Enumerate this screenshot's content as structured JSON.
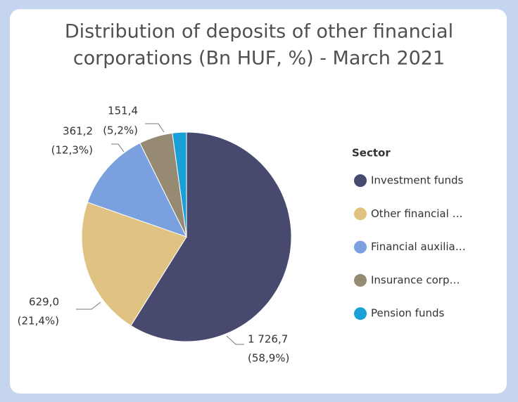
{
  "chart_data": {
    "type": "pie",
    "title": [
      "Distribution of deposits of other financial",
      "corporations (Bn HUF, %) - March 2021"
    ],
    "legend_title": "Sector",
    "categories": [
      "Investment funds",
      "Other financial …",
      "Financial auxilia…",
      "Insurance corp…",
      "Pension funds"
    ],
    "values": [
      1726.7,
      629.0,
      361.2,
      151.4,
      63.3
    ],
    "value_labels": [
      "1 726,7",
      "629,0",
      "361,2",
      "151,4",
      null
    ],
    "shares": [
      58.9,
      21.4,
      12.3,
      5.2,
      null
    ],
    "share_labels": [
      "(58,9%)",
      "(21,4%)",
      "(12,3%)",
      "(5,2%)",
      null
    ],
    "colors": [
      "#474a6e",
      "#e0c283",
      "#7aa0e0",
      "#978a73",
      "#1aa0d6"
    ]
  }
}
